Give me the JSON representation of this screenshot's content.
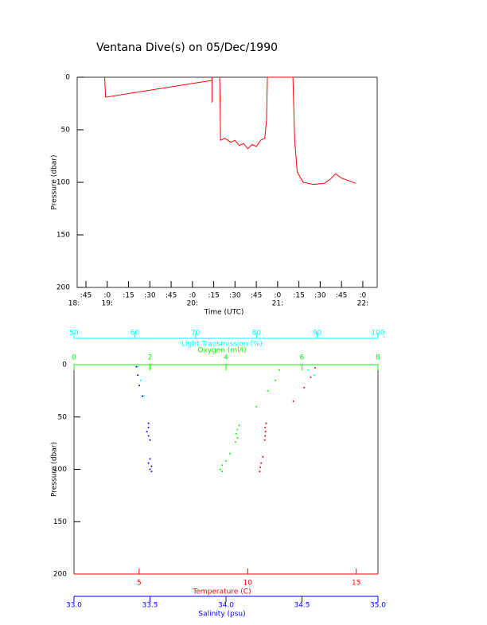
{
  "chart_data": [
    {
      "type": "line",
      "title": "Ventana Dive(s) on 05/Dec/1990",
      "x_label": "Time (UTC)",
      "y_label": "Pressure (dbar)",
      "xlim": [
        18.647,
        22.169
      ],
      "ylim": [
        0,
        200
      ],
      "y_inverted": true,
      "x_start_label": "18:",
      "xticks": [
        {
          "value": 18.75,
          "label": ":45"
        },
        {
          "value": 19,
          "label": ":0"
        },
        {
          "value": 19.25,
          "label": ":15"
        },
        {
          "value": 19.5,
          "label": ":30"
        },
        {
          "value": 19.75,
          "label": ":45"
        },
        {
          "value": 20,
          "label": ":0"
        },
        {
          "value": 20.25,
          "label": ":15"
        },
        {
          "value": 20.5,
          "label": ":30"
        },
        {
          "value": 20.75,
          "label": ":45"
        },
        {
          "value": 21,
          "label": ":0"
        },
        {
          "value": 21.25,
          "label": ":15"
        },
        {
          "value": 21.5,
          "label": ":30"
        },
        {
          "value": 21.75,
          "label": ":45"
        },
        {
          "value": 22,
          "label": ":0"
        }
      ],
      "xticks_hours": [
        {
          "value": 19,
          "label": "19:"
        },
        {
          "value": 20,
          "label": "20:"
        },
        {
          "value": 21,
          "label": "21:"
        },
        {
          "value": 22,
          "label": "22:"
        }
      ],
      "yticks": [
        0,
        50,
        100,
        150,
        200
      ],
      "series": [
        {
          "color": "#ff0000",
          "x": [
            18.97,
            18.98,
            20.23,
            null,
            20.23,
            20.23,
            null,
            20.32,
            20.33,
            20.38,
            20.45,
            20.5,
            20.55,
            20.6,
            20.65,
            20.7,
            20.75,
            20.8,
            20.85,
            20.87,
            20.88,
            21.18,
            21.2,
            21.23,
            21.3,
            21.42,
            21.55,
            21.62,
            21.68,
            21.75,
            21.92
          ],
          "y": [
            0,
            19,
            3,
            null,
            0,
            24,
            null,
            0,
            60,
            58,
            62,
            60,
            65,
            63,
            68,
            64,
            66,
            60,
            58,
            40,
            0,
            0,
            60,
            90,
            100,
            102,
            101,
            97,
            92,
            96,
            101
          ]
        }
      ]
    },
    {
      "type": "scatter",
      "y_label": "Pressure (dbar)",
      "ylim": [
        0,
        200
      ],
      "y_inverted": true,
      "yticks": [
        0,
        50,
        100,
        150,
        200
      ],
      "x_axes": [
        {
          "label": "Oxygen (ml/l)",
          "color": "#00ff00",
          "position": "top",
          "xlim": [
            0,
            8
          ],
          "xticks": [
            0,
            2,
            4,
            6,
            8
          ],
          "x": [
            5.4,
            5.3,
            5.1,
            4.8,
            4.35,
            4.3,
            4.27,
            4.3,
            4.25,
            4.1,
            4.0,
            3.9,
            3.85,
            3.9
          ],
          "y": [
            5,
            15,
            25,
            40,
            58,
            62,
            66,
            70,
            74,
            85,
            92,
            96,
            100,
            102
          ]
        },
        {
          "label": "Light Transmission (%)",
          "color": "#00ffff",
          "position": "top",
          "xlim": [
            50,
            100
          ],
          "xticks": [
            50,
            60,
            70,
            80,
            90,
            100
          ],
          "x": [
            60.5,
            61,
            61.5,
            88.5,
            89.5
          ],
          "y": [
            2,
            15,
            30,
            5,
            10
          ]
        },
        {
          "label": "Temperature (C)",
          "color": "#ff0000",
          "position": "bottom",
          "xlim": [
            2,
            16
          ],
          "xticks": [
            5,
            10,
            15
          ],
          "x": [
            13.1,
            12.9,
            12.6,
            12.1,
            10.85,
            10.8,
            10.82,
            10.8,
            10.78,
            10.7,
            10.62,
            10.58,
            10.55
          ],
          "y": [
            3,
            12,
            22,
            35,
            56,
            60,
            64,
            68,
            72,
            88,
            94,
            98,
            102
          ]
        },
        {
          "label": "Salinity (psu)",
          "color": "#0000ff",
          "position": "bottom",
          "xlim": [
            33,
            35
          ],
          "xticks": [
            {
              "value": 33,
              "label": "33.0"
            },
            33.5,
            {
              "value": 34,
              "label": "34.0"
            },
            34.5,
            {
              "value": 35,
              "label": "35.0"
            }
          ],
          "x": [
            33.41,
            33.42,
            33.43,
            33.45,
            33.49,
            33.49,
            33.48,
            33.49,
            33.5,
            33.5,
            33.49,
            33.51,
            33.5,
            33.51
          ],
          "y": [
            2,
            10,
            20,
            30,
            56,
            60,
            64,
            68,
            72,
            90,
            94,
            97,
            100,
            102
          ]
        }
      ]
    }
  ]
}
